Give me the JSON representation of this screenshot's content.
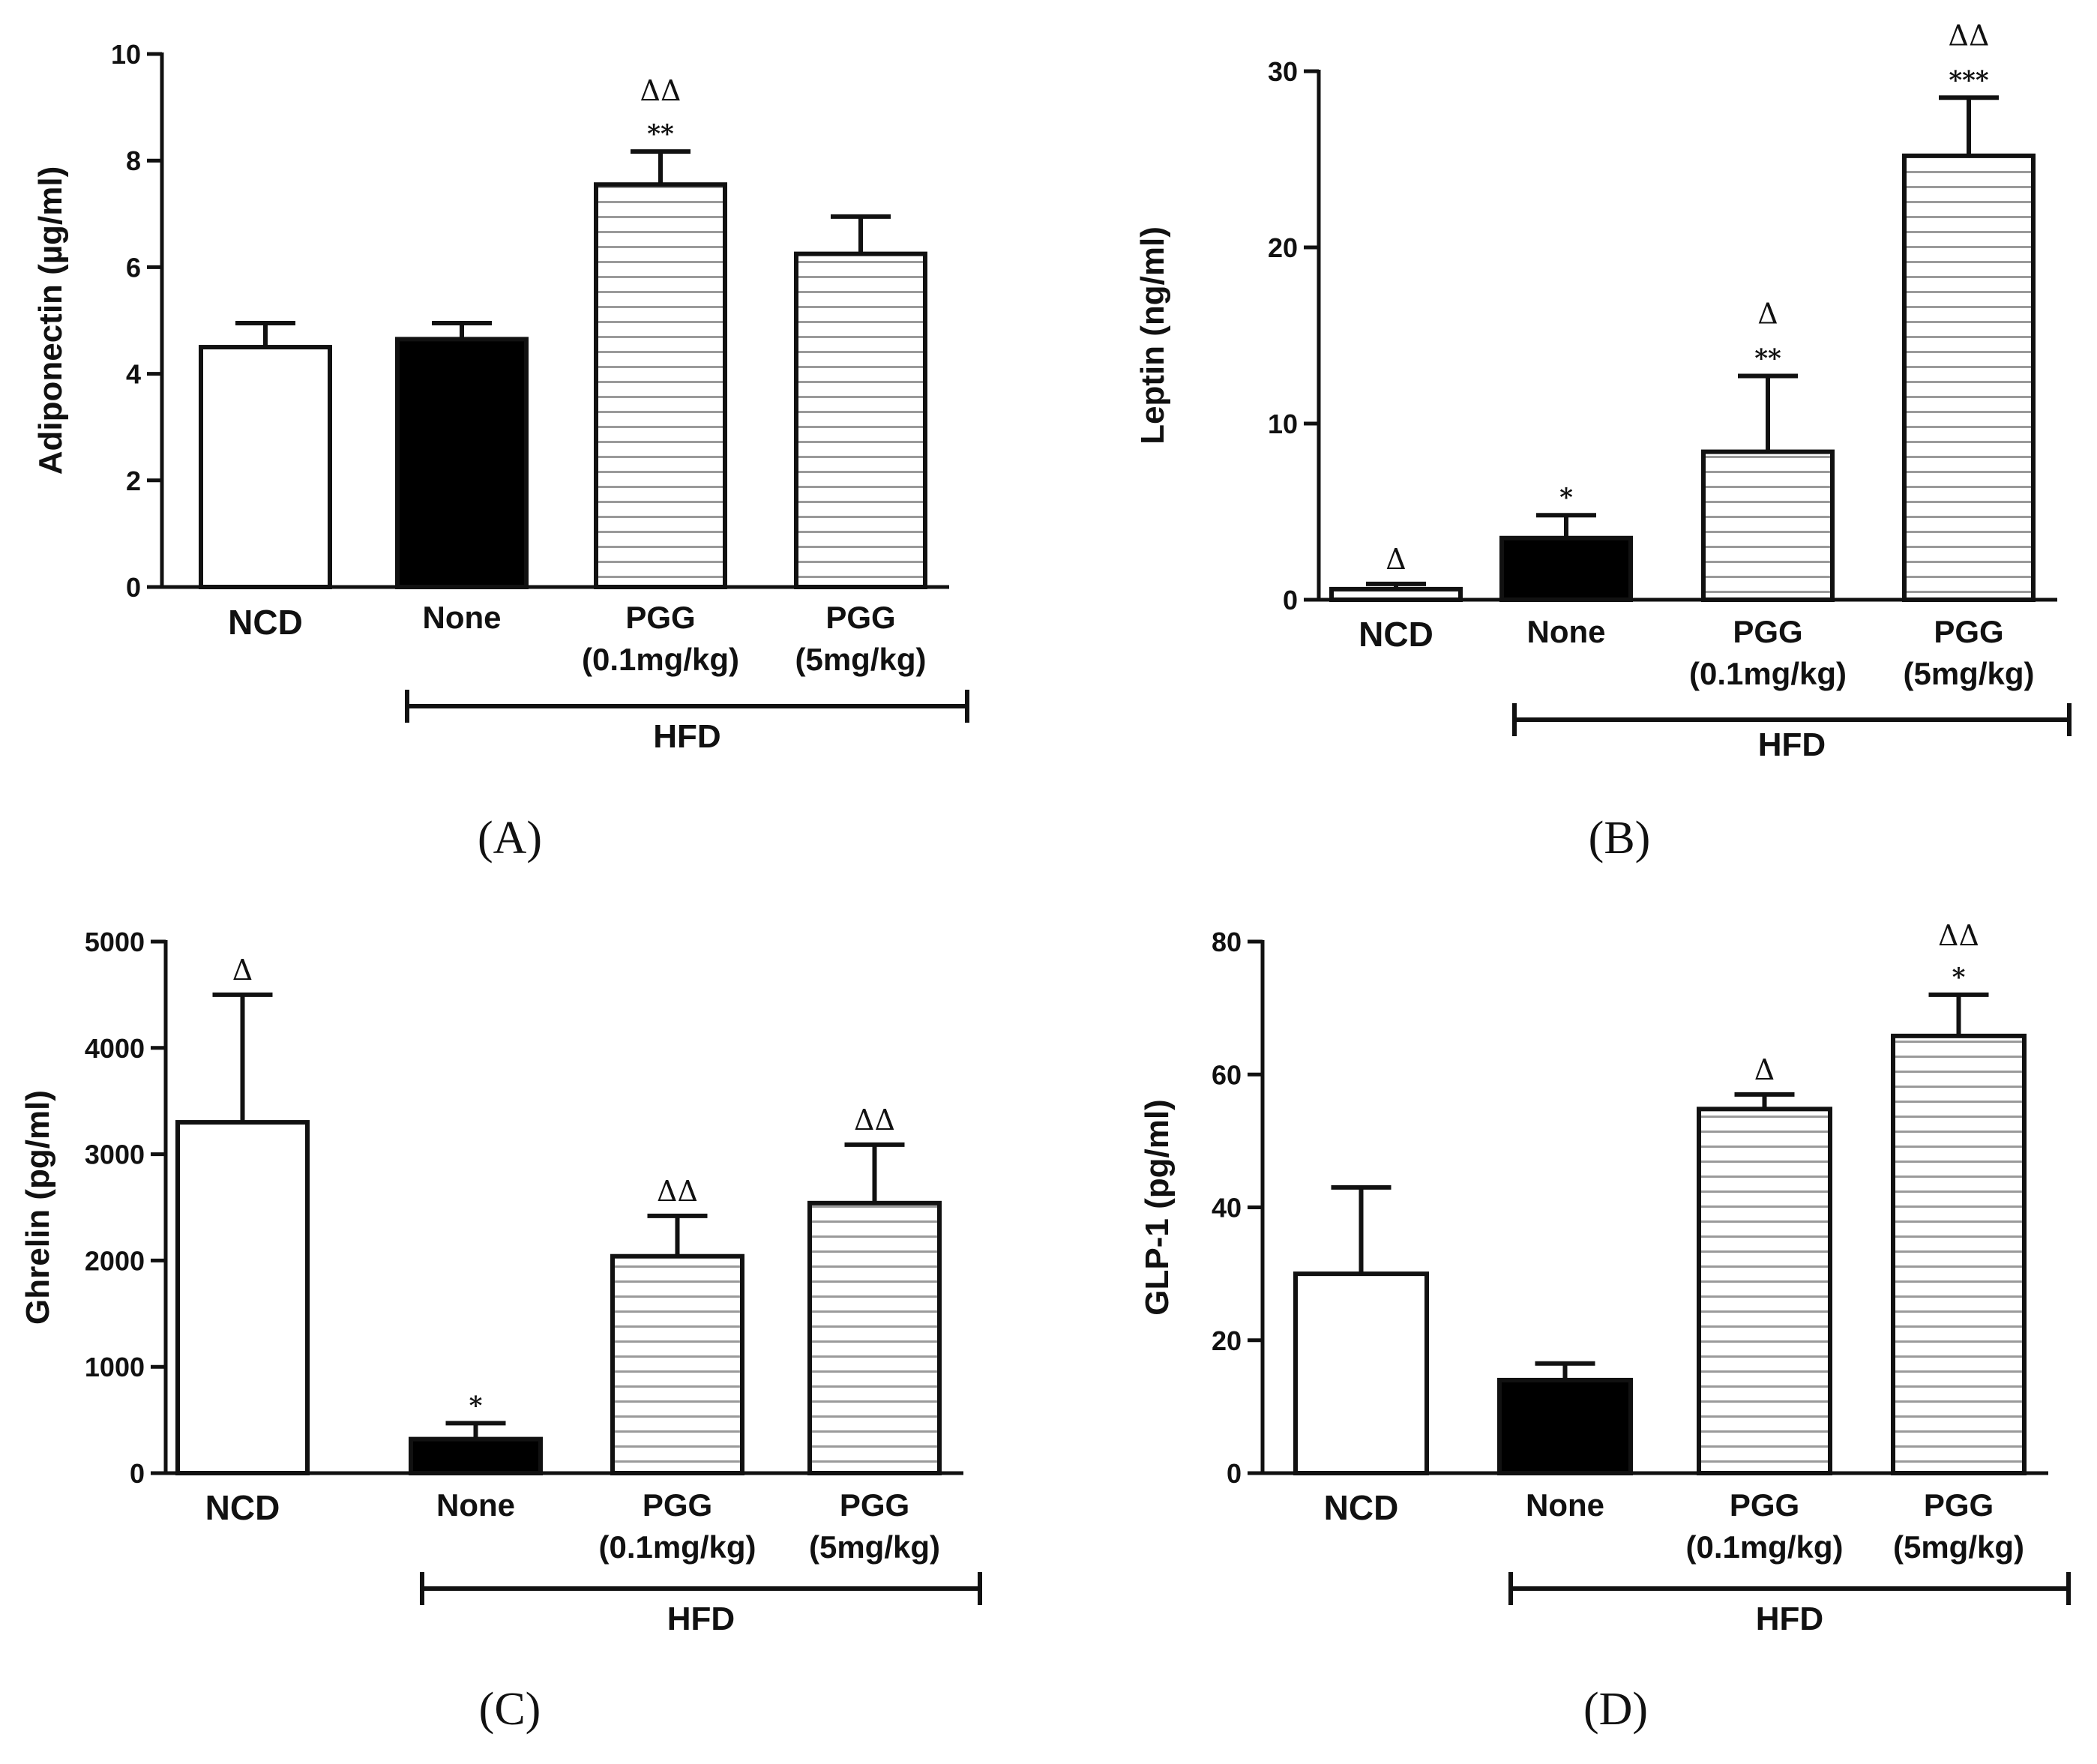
{
  "chart_data": [
    {
      "type": "bar",
      "panel_label": "(A)",
      "ylabel": "Adiponectin (µg/ml)",
      "ylim": [
        0,
        10
      ],
      "yticks": [
        "0",
        "2",
        "4",
        "6",
        "8",
        "10"
      ],
      "categories": [
        [
          "NCD"
        ],
        [
          "None"
        ],
        [
          "PGG",
          "(0.1mg/kg)"
        ],
        [
          "PGG",
          "(5mg/kg)"
        ]
      ],
      "bar_fills": [
        "white",
        "black",
        "stripes",
        "stripes"
      ],
      "values": [
        4.5,
        4.65,
        7.55,
        6.25
      ],
      "errors": [
        0.45,
        0.3,
        0.62,
        0.7
      ],
      "annotations": [
        [],
        [],
        [
          "**",
          "ΔΔ"
        ],
        []
      ],
      "group_label": "HFD"
    },
    {
      "type": "bar",
      "panel_label": "(B)",
      "ylabel": "Leptin (ng/ml)",
      "ylim": [
        0,
        30
      ],
      "yticks": [
        "0",
        "10",
        "20",
        "30"
      ],
      "categories": [
        [
          "NCD"
        ],
        [
          "None"
        ],
        [
          "PGG",
          "(0.1mg/kg)"
        ],
        [
          "PGG",
          "(5mg/kg)"
        ]
      ],
      "bar_fills": [
        "white",
        "black",
        "stripes",
        "stripes"
      ],
      "values": [
        0.6,
        3.5,
        8.4,
        25.2
      ],
      "errors": [
        0.3,
        1.3,
        4.3,
        3.3
      ],
      "annotations": [
        [
          "Δ"
        ],
        [
          "*"
        ],
        [
          "**",
          "Δ"
        ],
        [
          "***",
          "ΔΔ"
        ]
      ],
      "group_label": "HFD"
    },
    {
      "type": "bar",
      "panel_label": "(C)",
      "ylabel": "Ghrelin (pg/ml)",
      "ylim": [
        0,
        5000
      ],
      "yticks": [
        "0",
        "1000",
        "2000",
        "3000",
        "4000",
        "5000"
      ],
      "categories": [
        [
          "NCD"
        ],
        [
          "None"
        ],
        [
          "PGG",
          "(0.1mg/kg)"
        ],
        [
          "PGG",
          "(5mg/kg)"
        ]
      ],
      "bar_fills": [
        "white",
        "black",
        "stripes",
        "stripes"
      ],
      "values": [
        3300,
        320,
        2040,
        2540
      ],
      "errors": [
        1200,
        150,
        380,
        550
      ],
      "annotations": [
        [
          "Δ"
        ],
        [
          "*"
        ],
        [
          "ΔΔ"
        ],
        [
          "ΔΔ"
        ]
      ],
      "group_label": "HFD"
    },
    {
      "type": "bar",
      "panel_label": "(D)",
      "ylabel": "GLP-1 (pg/ml)",
      "ylim": [
        0,
        80
      ],
      "yticks": [
        "0",
        "20",
        "40",
        "60",
        "80"
      ],
      "categories": [
        [
          "NCD"
        ],
        [
          "None"
        ],
        [
          "PGG",
          "(0.1mg/kg)"
        ],
        [
          "PGG",
          "(5mg/kg)"
        ]
      ],
      "bar_fills": [
        "white",
        "black",
        "stripes",
        "stripes"
      ],
      "values": [
        30,
        14,
        54.8,
        65.8
      ],
      "errors": [
        13,
        2.5,
        2.2,
        6.2
      ],
      "annotations": [
        [],
        [],
        [
          "Δ"
        ],
        [
          "*",
          "ΔΔ"
        ]
      ],
      "group_label": "HFD"
    }
  ]
}
